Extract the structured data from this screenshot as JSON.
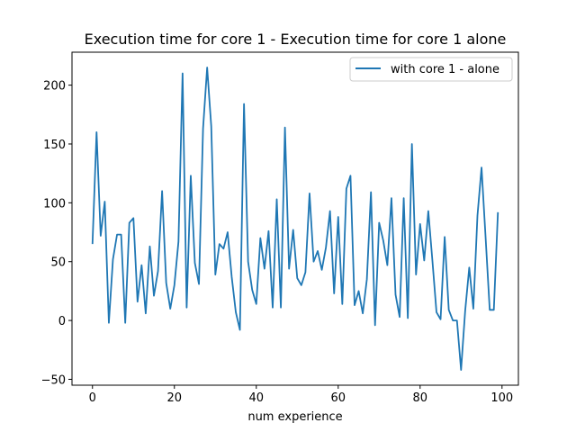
{
  "chart_data": {
    "type": "line",
    "title": "Execution time for core 1 - Execution time for core 1 alone",
    "xlabel": "num experience",
    "ylabel": "",
    "xlim": [
      -5,
      104
    ],
    "ylim": [
      -55,
      228
    ],
    "xticks": [
      0,
      20,
      40,
      60,
      80,
      100
    ],
    "yticks": [
      -50,
      0,
      50,
      100,
      150,
      200
    ],
    "grid": false,
    "legend_position": "top-right",
    "series": [
      {
        "name": "with core 1 - alone",
        "color": "#1f77b4",
        "x": [
          0,
          1,
          2,
          3,
          4,
          5,
          6,
          7,
          8,
          9,
          10,
          11,
          12,
          13,
          14,
          15,
          16,
          17,
          18,
          19,
          20,
          21,
          22,
          23,
          24,
          25,
          26,
          27,
          28,
          29,
          30,
          31,
          32,
          33,
          34,
          35,
          36,
          37,
          38,
          39,
          40,
          41,
          42,
          43,
          44,
          45,
          46,
          47,
          48,
          49,
          50,
          51,
          52,
          53,
          54,
          55,
          56,
          57,
          58,
          59,
          60,
          61,
          62,
          63,
          64,
          65,
          66,
          67,
          68,
          69,
          70,
          71,
          72,
          73,
          74,
          75,
          76,
          77,
          78,
          79,
          80,
          81,
          82,
          83,
          84,
          85,
          86,
          87,
          88,
          89,
          90,
          91,
          92,
          93,
          94,
          95,
          96,
          97,
          98,
          99
        ],
        "y": [
          65,
          160,
          72,
          101,
          -2,
          52,
          73,
          73,
          -2,
          83,
          87,
          16,
          47,
          6,
          63,
          21,
          42,
          110,
          32,
          10,
          30,
          67,
          210,
          11,
          123,
          49,
          31,
          163,
          215,
          165,
          39,
          65,
          61,
          75,
          37,
          7,
          -8,
          184,
          50,
          26,
          14,
          70,
          44,
          76,
          11,
          103,
          11,
          164,
          44,
          77,
          36,
          30,
          41,
          108,
          50,
          59,
          43,
          62,
          93,
          23,
          88,
          14,
          112,
          123,
          13,
          25,
          6,
          35,
          109,
          -4,
          83,
          68,
          47,
          104,
          22,
          3,
          104,
          2,
          150,
          39,
          82,
          51,
          93,
          51,
          7,
          1,
          71,
          9,
          0,
          0,
          -42,
          8,
          45,
          10,
          89,
          130,
          70,
          9,
          9,
          92
        ]
      }
    ]
  }
}
